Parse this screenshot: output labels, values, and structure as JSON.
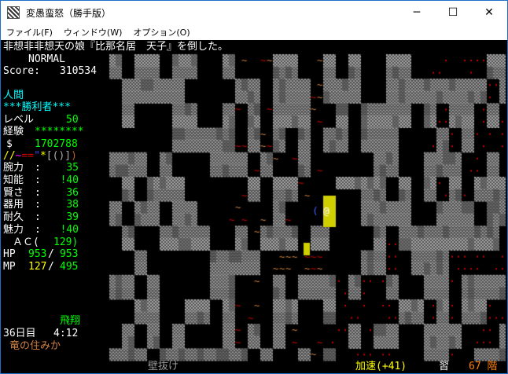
{
  "window": {
    "title": "変愚蛮怒（勝手版）",
    "minimize": "─",
    "maximize": "☐",
    "close": "✕"
  },
  "menu": [
    "ファイル(F)",
    "ウィンドウ(W)",
    "オプション(O)"
  ],
  "message": "非想非非想天の娘『比那名居　天子』を倒した。",
  "sidebar": {
    "mode": "NORMAL",
    "score_label": "Score:",
    "score": "310534",
    "race": "人間",
    "title": "***勝利者***",
    "level_label": "レベル",
    "level": "50",
    "exp_label": "経験",
    "exp": "********",
    "gold_label": "$",
    "gold": "1702788",
    "equipment": [
      {
        "c": "//",
        "color": "#ffff00"
      },
      {
        "c": "~",
        "color": "#ff00ff"
      },
      {
        "c": "==",
        "color": "#d00000"
      },
      {
        "c": "\"",
        "color": "#4040ff"
      },
      {
        "c": "*",
        "color": "#ffff00"
      },
      {
        "c": "[()]",
        "color": "#aaaaaa"
      },
      {
        "c": ")",
        "color": "#b06020"
      }
    ],
    "stats": [
      {
        "label": "腕力",
        "value": "35"
      },
      {
        "label": "知能",
        "value": "!40"
      },
      {
        "label": "賢さ",
        "value": "36"
      },
      {
        "label": "器用",
        "value": "38"
      },
      {
        "label": "耐久",
        "value": "39"
      },
      {
        "label": "魅力",
        "value": "!40"
      }
    ],
    "ac_label": "ＡＣ(",
    "ac": "129)",
    "hp_label": "HP",
    "hp_cur": "953",
    "hp_max": "953",
    "mp_label": "MP",
    "mp_cur": "127",
    "mp_max": "495",
    "levitation": "飛翔",
    "day": "36日目",
    "time": "4:12",
    "location": "竜の住みか"
  },
  "status_bar": {
    "pass_wall": "壁抜け",
    "speed": "加速(+41)",
    "study": "習",
    "depth": "67 階"
  },
  "colors": {
    "stat": "#00ff00",
    "cyan": "#00ffff",
    "mp_low": "#ffff00",
    "location": "#d08040",
    "depth": "#ff8000",
    "wall": "#a0a0a0"
  }
}
